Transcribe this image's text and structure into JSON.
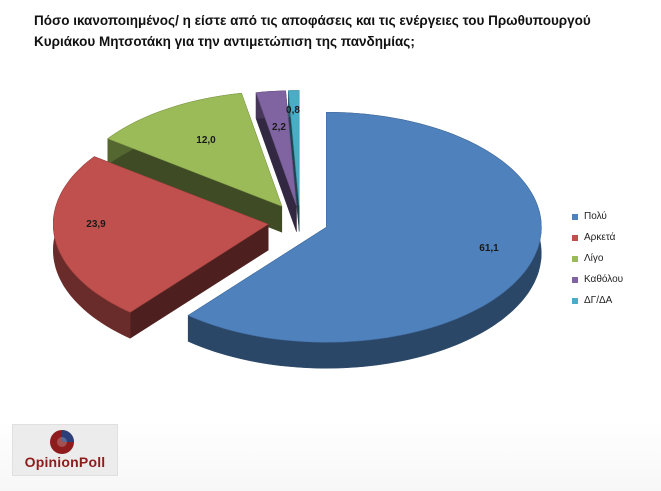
{
  "title": {
    "line1": "Πόσο ικανοποιημένος/ η είστε από τις αποφάσεις και τις ενέργειες του Πρωθυπουργού",
    "line2": "Κυριάκου Μητσοτάκη  για την αντιμετώπιση της πανδημίας;"
  },
  "chart_data": {
    "type": "pie",
    "style": "3d-exploded",
    "categories": [
      "Πολύ",
      "Αρκετά",
      "Λίγο",
      "Καθόλου",
      "ΔΓ/ΔΑ"
    ],
    "values": [
      61.1,
      23.9,
      12.0,
      2.2,
      0.8
    ],
    "value_labels": [
      "61,1",
      "23,9",
      "12,0",
      "2,2",
      "0,8"
    ],
    "colors": [
      "#4f81bd",
      "#c0504d",
      "#9bbb59",
      "#8064a2",
      "#4bacc6"
    ],
    "legend_position": "right"
  },
  "logo": {
    "text": "OpinionPoll"
  }
}
